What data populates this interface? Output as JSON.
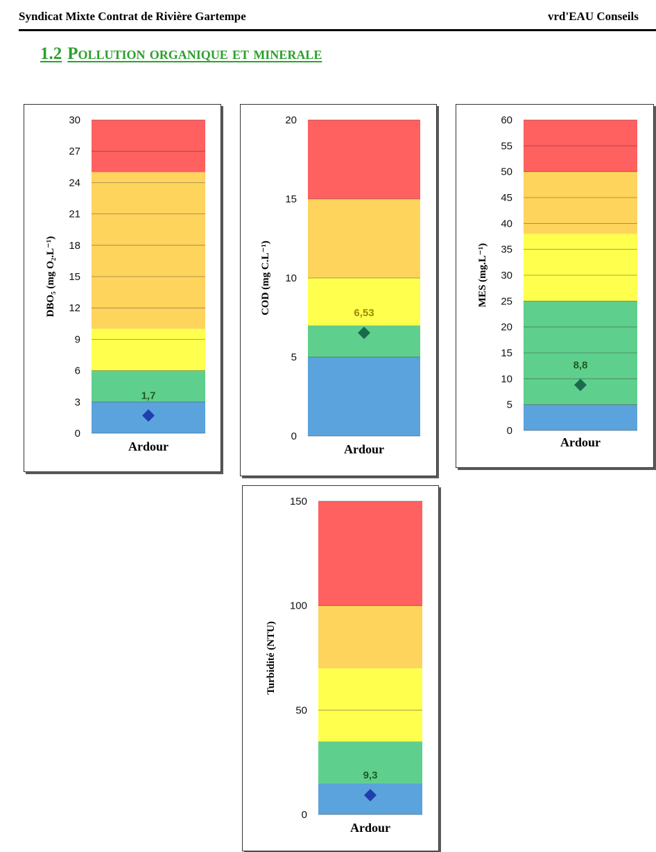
{
  "header": {
    "left": "Syndicat Mixte Contrat de Rivière Gartempe",
    "right": "vrd'EAU Conseils"
  },
  "section": {
    "number": "1.2",
    "title": "Pollution organique et minerale"
  },
  "chart_data": [
    {
      "type": "bar",
      "categories": [
        "Ardour"
      ],
      "ylabel": "DBO₅ (mg O₂.L⁻¹)",
      "ylim": [
        0,
        30
      ],
      "yticks": [
        0,
        3,
        6,
        9,
        12,
        15,
        18,
        21,
        24,
        27,
        30
      ],
      "bands": [
        {
          "from": 0,
          "to": 3,
          "color": "#5ba3dc"
        },
        {
          "from": 3,
          "to": 6,
          "color": "#5fcf8e"
        },
        {
          "from": 6,
          "to": 10,
          "color": "#ffff4d"
        },
        {
          "from": 10,
          "to": 25,
          "color": "#ffd45c"
        },
        {
          "from": 25,
          "to": 30,
          "color": "#ff6060"
        }
      ],
      "points": [
        {
          "category": "Ardour",
          "value": 1.7,
          "label": "1,7",
          "label_color": "#1e5c1e",
          "marker_color": "#1f3fae"
        }
      ],
      "grid": true
    },
    {
      "type": "bar",
      "categories": [
        "Ardour"
      ],
      "ylabel": "COD (mg C.L⁻¹)",
      "ylim": [
        0,
        20
      ],
      "yticks": [
        0,
        5,
        10,
        15,
        20
      ],
      "bands": [
        {
          "from": 0,
          "to": 5,
          "color": "#5ba3dc"
        },
        {
          "from": 5,
          "to": 7,
          "color": "#5fcf8e"
        },
        {
          "from": 7,
          "to": 10,
          "color": "#ffff4d"
        },
        {
          "from": 10,
          "to": 15,
          "color": "#ffd45c"
        },
        {
          "from": 15,
          "to": 20,
          "color": "#ff6060"
        }
      ],
      "points": [
        {
          "category": "Ardour",
          "value": 6.53,
          "label": "6,53",
          "label_color": "#9a8a00",
          "marker_color": "#1a6b4c"
        }
      ],
      "grid": true
    },
    {
      "type": "bar",
      "categories": [
        "Ardour"
      ],
      "ylabel": "MES (mg.L⁻¹)",
      "ylim": [
        0,
        60
      ],
      "yticks": [
        0,
        5,
        10,
        15,
        20,
        25,
        30,
        35,
        40,
        45,
        50,
        55,
        60
      ],
      "bands": [
        {
          "from": 0,
          "to": 5,
          "color": "#5ba3dc"
        },
        {
          "from": 5,
          "to": 25,
          "color": "#5fcf8e"
        },
        {
          "from": 25,
          "to": 38,
          "color": "#ffff4d"
        },
        {
          "from": 38,
          "to": 50,
          "color": "#ffd45c"
        },
        {
          "from": 50,
          "to": 60,
          "color": "#ff6060"
        }
      ],
      "points": [
        {
          "category": "Ardour",
          "value": 8.8,
          "label": "8,8",
          "label_color": "#1e5c1e",
          "marker_color": "#1a6b4c"
        }
      ],
      "grid": true
    },
    {
      "type": "bar",
      "categories": [
        "Ardour"
      ],
      "ylabel": "Turbidité (NTU)",
      "ylim": [
        0,
        150
      ],
      "yticks": [
        0,
        50,
        100,
        150
      ],
      "bands": [
        {
          "from": 0,
          "to": 15,
          "color": "#5ba3dc"
        },
        {
          "from": 15,
          "to": 35,
          "color": "#5fcf8e"
        },
        {
          "from": 35,
          "to": 70,
          "color": "#ffff4d"
        },
        {
          "from": 70,
          "to": 100,
          "color": "#ffd45c"
        },
        {
          "from": 100,
          "to": 150,
          "color": "#ff6060"
        }
      ],
      "points": [
        {
          "category": "Ardour",
          "value": 9.3,
          "label": "9,3",
          "label_color": "#1e5c1e",
          "marker_color": "#1f3fae"
        }
      ],
      "grid": true
    }
  ]
}
